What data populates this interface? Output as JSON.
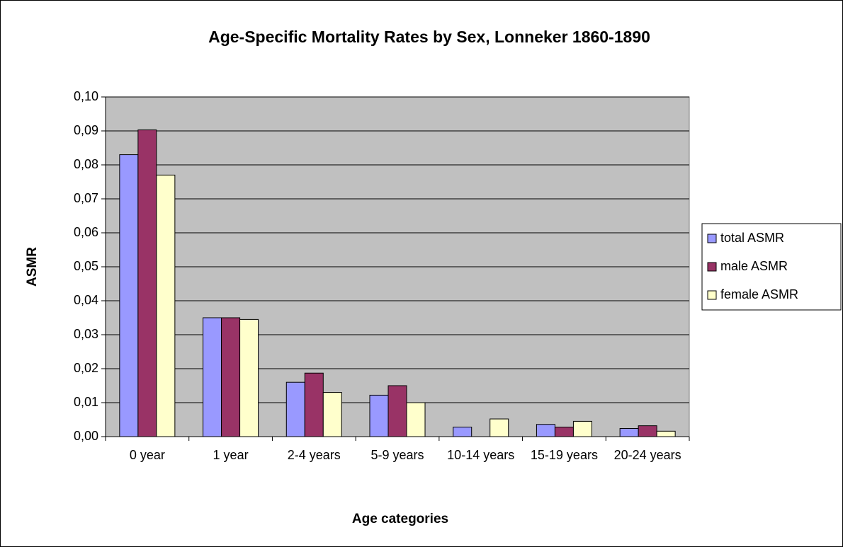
{
  "chart_data": {
    "type": "bar",
    "title": "Age-Specific Mortality Rates by Sex, Lonneker 1860-1890",
    "x_label": "Age categories",
    "y_label": "ASMR",
    "categories": [
      "0 year",
      "1 year",
      "2-4 years",
      "5-9 years",
      "10-14 years",
      "15-19 years",
      "20-24 years"
    ],
    "series": [
      {
        "name": "total ASMR",
        "color": "#9999ff",
        "values": [
          0.083,
          0.035,
          0.016,
          0.0122,
          0.0028,
          0.0036,
          0.0024
        ]
      },
      {
        "name": "male ASMR",
        "color": "#993366",
        "values": [
          0.0903,
          0.035,
          0.0187,
          0.015,
          0,
          0.0028,
          0.0032
        ]
      },
      {
        "name": "female ASMR",
        "color": "#ffffcc",
        "values": [
          0.077,
          0.0345,
          0.013,
          0.01,
          0.0052,
          0.0045,
          0.0016
        ]
      }
    ],
    "ylim": [
      0,
      0.1
    ],
    "yticks": [
      {
        "value": 0,
        "label": "0,00"
      },
      {
        "value": 0.01,
        "label": "0,01"
      },
      {
        "value": 0.02,
        "label": "0,02"
      },
      {
        "value": 0.03,
        "label": "0,03"
      },
      {
        "value": 0.04,
        "label": "0,04"
      },
      {
        "value": 0.05,
        "label": "0,05"
      },
      {
        "value": 0.06,
        "label": "0,06"
      },
      {
        "value": 0.07,
        "label": "0,07"
      },
      {
        "value": 0.08,
        "label": "0,08"
      },
      {
        "value": 0.09,
        "label": "0,09"
      },
      {
        "value": 0.1,
        "label": "0,10"
      }
    ],
    "grid": true,
    "legend": "right",
    "plot_background": "#c0c0c0"
  }
}
